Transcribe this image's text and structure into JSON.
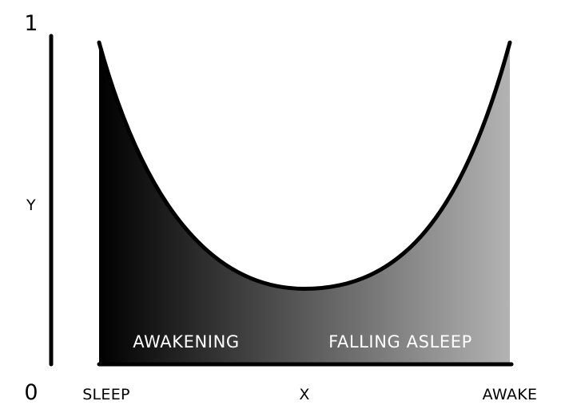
{
  "chart_data": {
    "type": "area",
    "y_axis": {
      "label": "Y",
      "max_label": "1",
      "min_label": "0",
      "range": [
        0,
        1
      ]
    },
    "x_axis": {
      "label": "X",
      "left_label": "SLEEP",
      "right_label": "AWAKE"
    },
    "regions": [
      {
        "label": "AWAKENING"
      },
      {
        "label": "FALLING ASLEEP"
      }
    ],
    "curve": {
      "shape": "U",
      "y_start": 0.98,
      "y_min": 0.23,
      "y_end": 0.98
    },
    "colors": {
      "fill_left": "#000000",
      "fill_right": "#b3b3b3",
      "stroke": "#000000",
      "region_text": "#ffffff"
    }
  }
}
